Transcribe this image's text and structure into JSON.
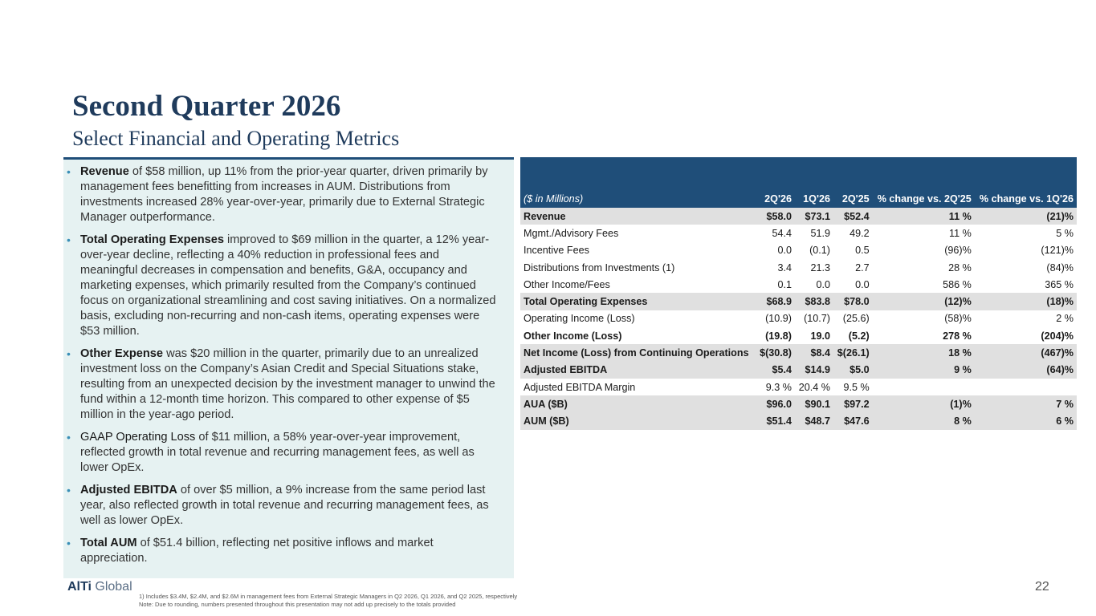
{
  "title": "Second Quarter 2026",
  "subtitle": "Select Financial and Operating Metrics",
  "bullets": [
    {
      "lead": "Revenue",
      "lead_bold": true,
      "text": " of $58 million, up 11% from the prior-year quarter, driven primarily by management fees benefitting from increases in AUM. Distributions from investments increased 28% year-over-year, primarily due to External Strategic Manager outperformance."
    },
    {
      "lead": "Total Operating Expenses",
      "lead_bold": true,
      "text": " improved to $69 million in the quarter, a 12% year-over-year decline, reflecting a 40% reduction in professional fees and meaningful decreases in compensation and benefits, G&A, occupancy and marketing expenses, which primarily resulted from the Company’s continued focus on organizational streamlining and cost saving initiatives. On a normalized basis, excluding non-recurring and non-cash items, operating expenses were $53 million."
    },
    {
      "lead": "Other Expense",
      "lead_bold": true,
      "text": " was $20 million in the quarter, primarily due to an unrealized investment loss on the Company’s Asian Credit and Special Situations stake, resulting from an unexpected decision by the investment manager to unwind the fund within a 12-month time horizon. This compared to other expense of $5 million in the year-ago period."
    },
    {
      "lead": "GAAP Operating Loss",
      "lead_bold": false,
      "text": " of $11 million, a 58% year-over-year improvement, reflected growth in total revenue and recurring management fees, as well as lower OpEx."
    },
    {
      "lead": "Adjusted EBITDA",
      "lead_bold": true,
      "text": " of over $5 million, a 9% increase from the same period last year, also reflected growth in total revenue and recurring management fees, as well as lower OpEx."
    },
    {
      "lead": "Total AUM",
      "lead_bold": true,
      "text": " of $51.4 billion, reflecting net positive inflows and market appreciation."
    }
  ],
  "table": {
    "headers": [
      "($ in Millions)",
      "2Q'26",
      "1Q'26",
      "2Q'25",
      "% change vs. 2Q'25",
      "% change vs. 1Q'26"
    ],
    "rows": [
      {
        "cells": [
          "Revenue",
          "$58.0",
          "$73.1",
          "$52.4",
          "11 %",
          "(21)%"
        ],
        "bold": true,
        "shade": true
      },
      {
        "cells": [
          "Mgmt./Advisory Fees",
          "54.4",
          "51.9",
          "49.2",
          "11 %",
          "5 %"
        ],
        "bold": false,
        "shade": false
      },
      {
        "cells": [
          "Incentive Fees",
          "0.0",
          "(0.1)",
          "0.5",
          "(96)%",
          "(121)%"
        ],
        "bold": false,
        "shade": false
      },
      {
        "cells": [
          "Distributions from Investments (1)",
          "3.4",
          "21.3",
          "2.7",
          "28 %",
          "(84)%"
        ],
        "bold": false,
        "shade": false
      },
      {
        "cells": [
          "Other Income/Fees",
          "0.1",
          "0.0",
          "0.0",
          "586 %",
          "365 %"
        ],
        "bold": false,
        "shade": false
      },
      {
        "cells": [
          "Total Operating Expenses",
          "$68.9",
          "$83.8",
          "$78.0",
          "(12)%",
          "(18)%"
        ],
        "bold": true,
        "shade": true
      },
      {
        "cells": [
          "Operating Income (Loss)",
          "(10.9)",
          "(10.7)",
          "(25.6)",
          "(58)%",
          "2 %"
        ],
        "bold": false,
        "shade": false
      },
      {
        "cells": [
          "Other Income (Loss)",
          "(19.8)",
          "19.0",
          "(5.2)",
          "278 %",
          "(204)%"
        ],
        "bold": true,
        "shade": false
      },
      {
        "cells": [
          "Net Income (Loss) from Continuing Operations",
          "$(30.8)",
          "$8.4",
          "$(26.1)",
          "18 %",
          "(467)%"
        ],
        "bold": true,
        "shade": true
      },
      {
        "cells": [
          "Adjusted EBITDA",
          "$5.4",
          "$14.9",
          "$5.0",
          "9 %",
          "(64)%"
        ],
        "bold": true,
        "shade": true
      },
      {
        "cells": [
          "Adjusted EBITDA Margin",
          "9.3 %",
          "20.4 %",
          "9.5 %",
          "",
          ""
        ],
        "bold": false,
        "shade": false
      },
      {
        "cells": [
          "AUA ($B)",
          "$96.0",
          "$90.1",
          "$97.2",
          "(1)%",
          "7 %"
        ],
        "bold": true,
        "shade": true
      },
      {
        "cells": [
          "AUM ($B)",
          "$51.4",
          "$48.7",
          "$47.6",
          "8 %",
          "6 %"
        ],
        "bold": true,
        "shade": true
      }
    ]
  },
  "logo": {
    "bold": "AlTi",
    "rest": " Global"
  },
  "footnotes": [
    "1)       Includes $3.4M, $2.4M, and $2.6M in management fees from External Strategic Managers in Q2 2026, Q1 2026, and Q2 2025, respectively",
    "Note: Due to rounding, numbers presented throughout this presentation may not add up precisely to the totals provided"
  ],
  "page_number": "22",
  "colors": {
    "header_bg": "#1f4e79",
    "panel_bg": "#e6f2f2",
    "title": "#1f3b5c",
    "row_shade": "#e0e0e0",
    "bullet": "#3a8fb7"
  }
}
